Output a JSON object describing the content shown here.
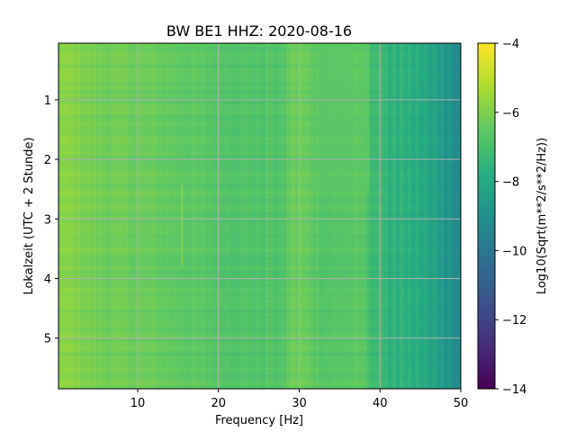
{
  "chart_data": {
    "type": "heatmap",
    "title": "BW BE1  HHZ: 2020-08-16",
    "xlabel": "Frequency [Hz]",
    "ylabel": "Lokalzeit (UTC + 2 Stunde)",
    "xlim": [
      0.2,
      50
    ],
    "ylim": [
      5.85,
      0.05
    ],
    "x_ticks": [
      10,
      20,
      30,
      40,
      50
    ],
    "y_ticks": [
      1,
      2,
      3,
      4,
      5
    ],
    "grid": true,
    "colormap": "viridis",
    "colorbar": {
      "label": "Log10(Sqrt(m**2/s**2/Hz))",
      "range": [
        -14,
        -4
      ],
      "ticks": [
        -4,
        -6,
        -8,
        -10,
        -12,
        -14
      ]
    },
    "spectral_profile": {
      "frequency_hz": [
        0.2,
        2,
        5,
        10,
        15,
        20,
        25,
        28,
        29,
        31,
        33,
        38,
        39,
        42,
        45,
        47,
        48,
        50
      ],
      "log_amplitude": [
        -5.8,
        -5.9,
        -6.2,
        -6.3,
        -6.5,
        -6.7,
        -6.8,
        -6.8,
        -6.3,
        -6.4,
        -6.7,
        -6.6,
        -7.2,
        -7.5,
        -7.8,
        -8.2,
        -8.6,
        -9.3
      ]
    },
    "features": [
      {
        "frequency_hz": 26.1,
        "log_amplitude": -6.3
      },
      {
        "frequency_hz": 29.2,
        "log_amplitude": -6.2
      },
      {
        "frequency_hz": 30.3,
        "log_amplitude": -6.2
      },
      {
        "frequency_hz": 15.5,
        "time_range": [
          2.4,
          3.8
        ],
        "log_amplitude": -6.0
      }
    ],
    "block": {
      "frequency_range": [
        31.5,
        38.8
      ],
      "time_range": [
        0.05,
        2.5
      ],
      "log_amplitude": -6.6
    }
  }
}
